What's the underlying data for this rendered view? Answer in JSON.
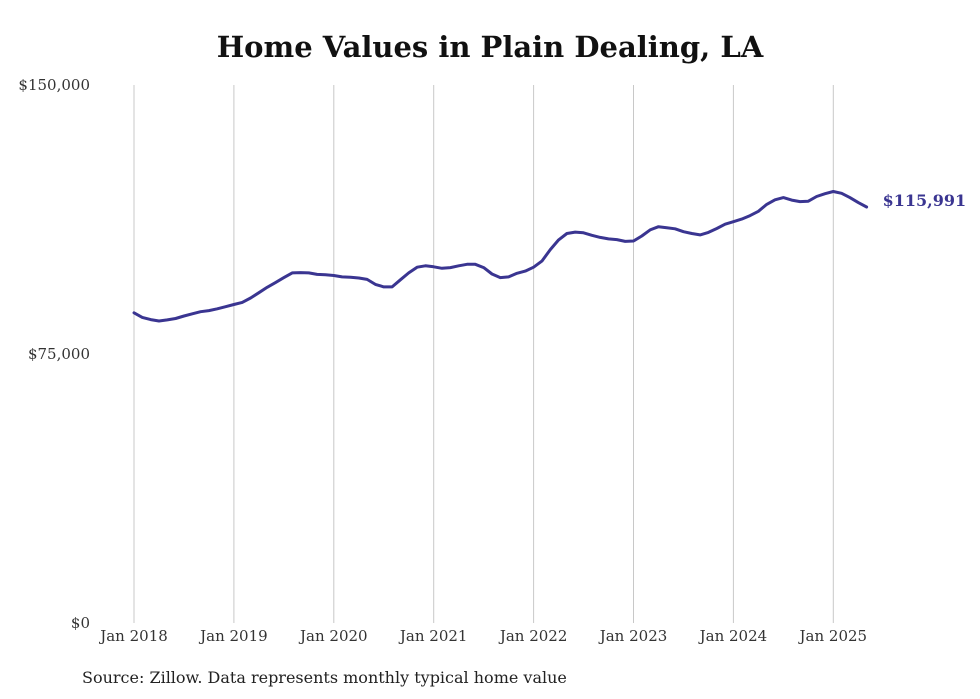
{
  "chart_data": {
    "type": "line",
    "title": "Home Values in Plain Dealing, LA",
    "xlabel": "",
    "ylabel": "",
    "ylim": [
      0,
      150000
    ],
    "y_ticks": [
      "$0",
      "$75,000",
      "$150,000"
    ],
    "y_tick_values": [
      0,
      75000,
      150000
    ],
    "x_ticks": [
      "Jan 2018",
      "Jan 2019",
      "Jan 2020",
      "Jan 2021",
      "Jan 2022",
      "Jan 2023",
      "Jan 2024",
      "Jan 2025"
    ],
    "x_tick_dates": [
      "2018-01",
      "2019-01",
      "2020-01",
      "2021-01",
      "2022-01",
      "2023-01",
      "2024-01",
      "2025-01"
    ],
    "grid": "vertical lines at x ticks",
    "line_color": "#3a3591",
    "end_label": "$115,991",
    "series": [
      {
        "x": [
          "2018-01",
          "2018-02",
          "2018-03",
          "2018-04",
          "2018-05",
          "2018-06",
          "2018-07",
          "2018-08",
          "2018-09",
          "2018-10",
          "2018-11",
          "2018-12",
          "2019-01",
          "2019-02",
          "2019-03",
          "2019-04",
          "2019-05",
          "2019-06",
          "2019-07",
          "2019-08",
          "2019-09",
          "2019-10",
          "2019-11",
          "2019-12",
          "2020-01",
          "2020-02",
          "2020-03",
          "2020-04",
          "2020-05",
          "2020-06",
          "2020-07",
          "2020-08",
          "2020-09",
          "2020-10",
          "2020-11",
          "2020-12",
          "2021-01",
          "2021-02",
          "2021-03",
          "2021-04",
          "2021-05",
          "2021-06",
          "2021-07",
          "2021-08",
          "2021-09",
          "2021-10",
          "2021-11",
          "2021-12",
          "2022-01",
          "2022-02",
          "2022-03",
          "2022-04",
          "2022-05",
          "2022-06",
          "2022-07",
          "2022-08",
          "2022-09",
          "2022-10",
          "2022-11",
          "2022-12",
          "2023-01",
          "2023-02",
          "2023-03",
          "2023-04",
          "2023-05",
          "2023-06",
          "2023-07",
          "2023-08",
          "2023-09",
          "2023-10",
          "2023-11",
          "2023-12",
          "2024-01",
          "2024-02",
          "2024-03",
          "2024-04",
          "2024-05",
          "2024-06",
          "2024-07",
          "2024-08",
          "2024-09",
          "2024-10",
          "2024-11",
          "2024-12",
          "2025-01",
          "2025-02",
          "2025-03",
          "2025-04",
          "2025-05"
        ],
        "values": [
          86500,
          85200,
          84600,
          84200,
          84500,
          84900,
          85600,
          86200,
          86800,
          87100,
          87600,
          88200,
          88800,
          89400,
          90600,
          92100,
          93600,
          94900,
          96300,
          97600,
          97700,
          97600,
          97200,
          97100,
          96900,
          96500,
          96400,
          96200,
          95800,
          94400,
          93700,
          93700,
          95700,
          97600,
          99200,
          99600,
          99300,
          98900,
          99100,
          99600,
          100000,
          100000,
          99100,
          97300,
          96300,
          96500,
          97500,
          98100,
          99200,
          100900,
          104100,
          106800,
          108600,
          109000,
          108800,
          108100,
          107500,
          107100,
          106900,
          106400,
          106500,
          107900,
          109600,
          110500,
          110200,
          109900,
          109100,
          108600,
          108200,
          108900,
          110000,
          111200,
          111900,
          112600,
          113600,
          114800,
          116700,
          118000,
          118600,
          117900,
          117500,
          117600,
          118900,
          119700,
          120300,
          119800,
          118600,
          117200,
          115991
        ]
      }
    ]
  },
  "footer": {
    "source": "Source: Zillow. Data represents monthly typical home value"
  }
}
